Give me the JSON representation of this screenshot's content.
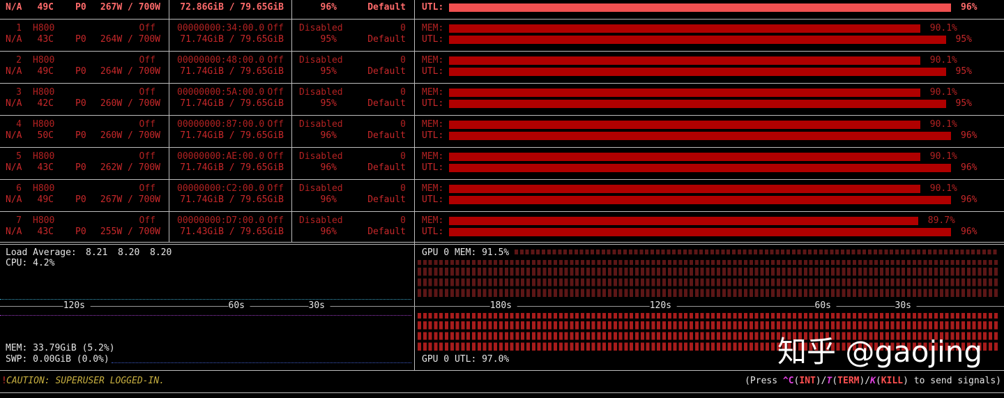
{
  "labels": {
    "mem": "MEM:",
    "utl": "UTL:"
  },
  "bar_xlim": [
    0,
    100
  ],
  "top_row": {
    "fan": "N/A",
    "temp": "49C",
    "perf": "P0",
    "power": "267W / 700W",
    "memory": "72.86GiB / 79.65GiB",
    "compute_mode": "Default",
    "utl_bar": {
      "value": 96,
      "label": "96%"
    }
  },
  "gpus": [
    {
      "index": "1",
      "name": "H800",
      "persistence": "Off",
      "bus_id": "00000000:34:00.0",
      "display": "Off",
      "mig": "Disabled",
      "ecc": "0",
      "fan": "N/A",
      "temp": "43C",
      "perf": "P0",
      "power": "264W / 700W",
      "memory": "71.74GiB / 79.65GiB",
      "compute_mode": "Default",
      "mem_bar": {
        "value": 90.1,
        "label": "90.1%"
      },
      "utl_bar": {
        "value": 95,
        "label": "95%"
      }
    },
    {
      "index": "2",
      "name": "H800",
      "persistence": "Off",
      "bus_id": "00000000:48:00.0",
      "display": "Off",
      "mig": "Disabled",
      "ecc": "0",
      "fan": "N/A",
      "temp": "49C",
      "perf": "P0",
      "power": "264W / 700W",
      "memory": "71.74GiB / 79.65GiB",
      "compute_mode": "Default",
      "mem_bar": {
        "value": 90.1,
        "label": "90.1%"
      },
      "utl_bar": {
        "value": 95,
        "label": "95%"
      }
    },
    {
      "index": "3",
      "name": "H800",
      "persistence": "Off",
      "bus_id": "00000000:5A:00.0",
      "display": "Off",
      "mig": "Disabled",
      "ecc": "0",
      "fan": "N/A",
      "temp": "42C",
      "perf": "P0",
      "power": "260W / 700W",
      "memory": "71.74GiB / 79.65GiB",
      "compute_mode": "Default",
      "mem_bar": {
        "value": 90.1,
        "label": "90.1%"
      },
      "utl_bar": {
        "value": 95,
        "label": "95%"
      }
    },
    {
      "index": "4",
      "name": "H800",
      "persistence": "Off",
      "bus_id": "00000000:87:00.0",
      "display": "Off",
      "mig": "Disabled",
      "ecc": "0",
      "fan": "N/A",
      "temp": "50C",
      "perf": "P0",
      "power": "260W / 700W",
      "memory": "71.74GiB / 79.65GiB",
      "compute_mode": "Default",
      "mem_bar": {
        "value": 90.1,
        "label": "90.1%"
      },
      "utl_bar": {
        "value": 96,
        "label": "96%"
      }
    },
    {
      "index": "5",
      "name": "H800",
      "persistence": "Off",
      "bus_id": "00000000:AE:00.0",
      "display": "Off",
      "mig": "Disabled",
      "ecc": "0",
      "fan": "N/A",
      "temp": "43C",
      "perf": "P0",
      "power": "262W / 700W",
      "memory": "71.74GiB / 79.65GiB",
      "compute_mode": "Default",
      "mem_bar": {
        "value": 90.1,
        "label": "90.1%"
      },
      "utl_bar": {
        "value": 96,
        "label": "96%"
      }
    },
    {
      "index": "6",
      "name": "H800",
      "persistence": "Off",
      "bus_id": "00000000:C2:00.0",
      "display": "Off",
      "mig": "Disabled",
      "ecc": "0",
      "fan": "N/A",
      "temp": "49C",
      "perf": "P0",
      "power": "267W / 700W",
      "memory": "71.74GiB / 79.65GiB",
      "compute_mode": "Default",
      "mem_bar": {
        "value": 90.1,
        "label": "90.1%"
      },
      "utl_bar": {
        "value": 96,
        "label": "96%"
      }
    },
    {
      "index": "7",
      "name": "H800",
      "persistence": "Off",
      "bus_id": "00000000:D7:00.0",
      "display": "Off",
      "mig": "Disabled",
      "ecc": "0",
      "fan": "N/A",
      "temp": "43C",
      "perf": "P0",
      "power": "255W / 700W",
      "memory": "71.43GiB / 79.65GiB",
      "compute_mode": "Default",
      "mem_bar": {
        "value": 89.7,
        "label": "89.7%"
      },
      "utl_bar": {
        "value": 96,
        "label": "96%"
      }
    }
  ],
  "host": {
    "load_average_label": "Load Average:",
    "load_average": [
      "8.21",
      "8.20",
      "8.20"
    ],
    "cpu": "CPU: 4.2%",
    "mem": "MEM: 33.79GiB (5.2%)",
    "swp": "SWP: 0.00GiB (0.0%)",
    "timeline": [
      "120s",
      "60s",
      "30s"
    ]
  },
  "gpu_history": {
    "mem": "GPU 0 MEM: 91.5%",
    "utl": "GPU 0 UTL: 97.0%",
    "timeline": [
      "180s",
      "120s",
      "60s",
      "30s"
    ]
  },
  "footer": {
    "caution_mark": "!",
    "caution": "CAUTION: SUPERUSER LOGGED-IN.",
    "signals": [
      "(Press ",
      "^C",
      "(",
      "INT",
      ")/",
      "T",
      "(",
      "TERM",
      ")/",
      "K",
      "(",
      "KILL",
      ") to send signals)"
    ]
  },
  "watermark": "知乎 @gaojing"
}
